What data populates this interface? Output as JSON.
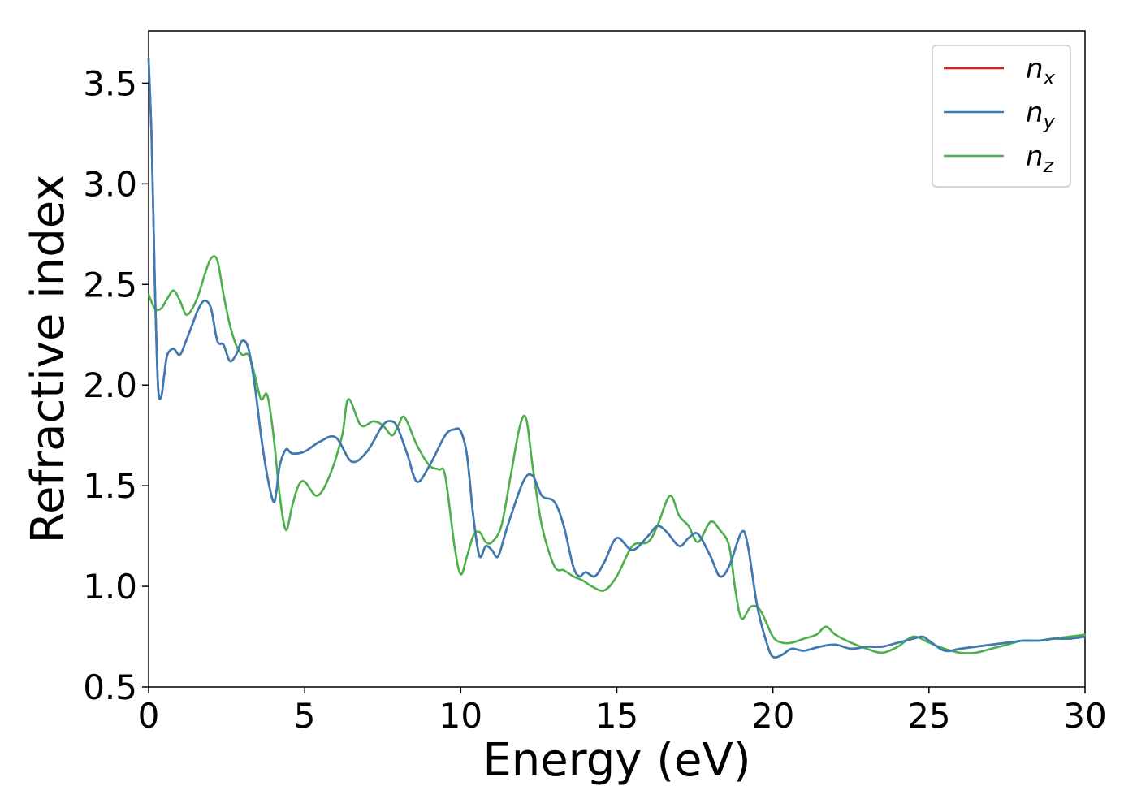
{
  "chart_data": {
    "type": "line",
    "xlabel": "Energy (eV)",
    "ylabel": "Refractive index",
    "xlim": [
      0,
      30
    ],
    "ylim": [
      0.5,
      3.76
    ],
    "xticks": [
      "0",
      "5",
      "10",
      "15",
      "20",
      "25",
      "30"
    ],
    "yticks": [
      "0.5",
      "1.0",
      "1.5",
      "2.0",
      "2.5",
      "3.0",
      "3.5"
    ],
    "grid": false,
    "legend_position": "top-right",
    "series": [
      {
        "name": "n",
        "subscript": "x",
        "color": "#e41a1c",
        "x": [
          0,
          0.1,
          0.2,
          0.3,
          0.4,
          0.5,
          0.6,
          0.8,
          1.0,
          1.2,
          1.4,
          1.6,
          1.8,
          2.0,
          2.2,
          2.4,
          2.6,
          2.8,
          3.0,
          3.2,
          3.4,
          3.6,
          3.8,
          4.0,
          4.1,
          4.2,
          4.4,
          4.6,
          5.0,
          5.5,
          6.0,
          6.5,
          7.0,
          7.5,
          7.8,
          8.0,
          8.3,
          8.6,
          9.0,
          9.5,
          9.8,
          10.0,
          10.2,
          10.4,
          10.6,
          10.8,
          11.0,
          11.2,
          11.5,
          12.0,
          12.3,
          12.6,
          13.0,
          13.3,
          13.6,
          13.8,
          14.0,
          14.3,
          14.6,
          15.0,
          15.5,
          16.0,
          16.3,
          16.6,
          17.0,
          17.3,
          17.6,
          18.0,
          18.3,
          18.6,
          19.0,
          19.2,
          19.5,
          19.8,
          20.0,
          20.3,
          20.6,
          21.0,
          21.5,
          22.0,
          22.5,
          23.0,
          23.5,
          24.0,
          24.5,
          24.8,
          25.0,
          25.5,
          26.0,
          26.5,
          27.0,
          27.5,
          28.0,
          28.5,
          29.0,
          29.5,
          30.0
        ],
        "values": [
          3.62,
          3.2,
          2.5,
          2.0,
          1.94,
          2.05,
          2.15,
          2.18,
          2.15,
          2.22,
          2.3,
          2.38,
          2.42,
          2.38,
          2.22,
          2.2,
          2.12,
          2.15,
          2.22,
          2.18,
          2.0,
          1.75,
          1.55,
          1.42,
          1.48,
          1.6,
          1.68,
          1.66,
          1.67,
          1.72,
          1.74,
          1.62,
          1.67,
          1.8,
          1.82,
          1.78,
          1.65,
          1.52,
          1.6,
          1.75,
          1.78,
          1.77,
          1.65,
          1.35,
          1.15,
          1.2,
          1.18,
          1.15,
          1.3,
          1.52,
          1.55,
          1.45,
          1.42,
          1.3,
          1.1,
          1.05,
          1.07,
          1.05,
          1.12,
          1.24,
          1.18,
          1.25,
          1.3,
          1.27,
          1.2,
          1.24,
          1.26,
          1.15,
          1.05,
          1.1,
          1.27,
          1.2,
          0.9,
          0.72,
          0.65,
          0.66,
          0.69,
          0.68,
          0.7,
          0.71,
          0.69,
          0.7,
          0.7,
          0.72,
          0.74,
          0.75,
          0.73,
          0.68,
          0.69,
          0.7,
          0.71,
          0.72,
          0.73,
          0.73,
          0.74,
          0.74,
          0.75
        ]
      },
      {
        "name": "n",
        "subscript": "y",
        "color": "#377eb8",
        "x": [
          0,
          0.1,
          0.2,
          0.3,
          0.4,
          0.5,
          0.6,
          0.8,
          1.0,
          1.2,
          1.4,
          1.6,
          1.8,
          2.0,
          2.2,
          2.4,
          2.6,
          2.8,
          3.0,
          3.2,
          3.4,
          3.6,
          3.8,
          4.0,
          4.1,
          4.2,
          4.4,
          4.6,
          5.0,
          5.5,
          6.0,
          6.5,
          7.0,
          7.5,
          7.8,
          8.0,
          8.3,
          8.6,
          9.0,
          9.5,
          9.8,
          10.0,
          10.2,
          10.4,
          10.6,
          10.8,
          11.0,
          11.2,
          11.5,
          12.0,
          12.3,
          12.6,
          13.0,
          13.3,
          13.6,
          13.8,
          14.0,
          14.3,
          14.6,
          15.0,
          15.5,
          16.0,
          16.3,
          16.6,
          17.0,
          17.3,
          17.6,
          18.0,
          18.3,
          18.6,
          19.0,
          19.2,
          19.5,
          19.8,
          20.0,
          20.3,
          20.6,
          21.0,
          21.5,
          22.0,
          22.5,
          23.0,
          23.5,
          24.0,
          24.5,
          24.8,
          25.0,
          25.5,
          26.0,
          26.5,
          27.0,
          27.5,
          28.0,
          28.5,
          29.0,
          29.5,
          30.0
        ],
        "values": [
          3.62,
          3.2,
          2.5,
          2.0,
          1.94,
          2.05,
          2.15,
          2.18,
          2.15,
          2.22,
          2.3,
          2.38,
          2.42,
          2.38,
          2.22,
          2.2,
          2.12,
          2.15,
          2.22,
          2.18,
          2.0,
          1.75,
          1.55,
          1.42,
          1.48,
          1.6,
          1.68,
          1.66,
          1.67,
          1.72,
          1.74,
          1.62,
          1.67,
          1.8,
          1.82,
          1.78,
          1.65,
          1.52,
          1.6,
          1.75,
          1.78,
          1.77,
          1.65,
          1.35,
          1.15,
          1.2,
          1.18,
          1.15,
          1.3,
          1.52,
          1.55,
          1.45,
          1.42,
          1.3,
          1.1,
          1.05,
          1.07,
          1.05,
          1.12,
          1.24,
          1.18,
          1.25,
          1.3,
          1.27,
          1.2,
          1.24,
          1.26,
          1.15,
          1.05,
          1.1,
          1.27,
          1.2,
          0.9,
          0.72,
          0.65,
          0.66,
          0.69,
          0.68,
          0.7,
          0.71,
          0.69,
          0.7,
          0.7,
          0.72,
          0.74,
          0.75,
          0.73,
          0.68,
          0.69,
          0.7,
          0.71,
          0.72,
          0.73,
          0.73,
          0.74,
          0.74,
          0.75
        ]
      },
      {
        "name": "n",
        "subscript": "z",
        "color": "#4daf4a",
        "x": [
          0,
          0.2,
          0.4,
          0.6,
          0.8,
          1.0,
          1.2,
          1.4,
          1.6,
          1.8,
          2.0,
          2.2,
          2.4,
          2.6,
          2.8,
          3.0,
          3.2,
          3.4,
          3.6,
          3.8,
          4.0,
          4.2,
          4.4,
          4.6,
          4.8,
          5.0,
          5.4,
          5.8,
          6.2,
          6.4,
          6.8,
          7.2,
          7.5,
          7.8,
          8.0,
          8.2,
          8.6,
          9.0,
          9.3,
          9.5,
          9.8,
          10.0,
          10.2,
          10.4,
          10.6,
          10.8,
          11.0,
          11.3,
          11.6,
          11.9,
          12.1,
          12.3,
          12.6,
          13.0,
          13.3,
          13.6,
          13.9,
          14.2,
          14.6,
          15.0,
          15.5,
          16.0,
          16.3,
          16.7,
          17.0,
          17.3,
          17.6,
          18.0,
          18.3,
          18.6,
          18.8,
          19.0,
          19.3,
          19.6,
          20.0,
          20.3,
          20.6,
          21.0,
          21.4,
          21.7,
          22.0,
          22.5,
          23.0,
          23.5,
          24.0,
          24.5,
          25.0,
          25.5,
          26.0,
          26.5,
          27.0,
          27.5,
          28.0,
          28.5,
          29.0,
          29.5,
          30.0
        ],
        "values": [
          2.45,
          2.38,
          2.38,
          2.43,
          2.47,
          2.42,
          2.35,
          2.38,
          2.45,
          2.55,
          2.63,
          2.62,
          2.45,
          2.3,
          2.2,
          2.15,
          2.15,
          2.05,
          1.93,
          1.95,
          1.75,
          1.45,
          1.28,
          1.4,
          1.5,
          1.52,
          1.45,
          1.55,
          1.75,
          1.93,
          1.8,
          1.82,
          1.8,
          1.75,
          1.8,
          1.84,
          1.7,
          1.6,
          1.58,
          1.55,
          1.2,
          1.06,
          1.15,
          1.25,
          1.27,
          1.22,
          1.22,
          1.3,
          1.55,
          1.8,
          1.83,
          1.6,
          1.3,
          1.1,
          1.08,
          1.05,
          1.03,
          1.0,
          0.98,
          1.05,
          1.2,
          1.22,
          1.3,
          1.45,
          1.35,
          1.3,
          1.22,
          1.32,
          1.28,
          1.2,
          0.98,
          0.84,
          0.9,
          0.88,
          0.75,
          0.72,
          0.72,
          0.74,
          0.76,
          0.8,
          0.76,
          0.72,
          0.69,
          0.67,
          0.7,
          0.75,
          0.72,
          0.69,
          0.67,
          0.67,
          0.69,
          0.71,
          0.73,
          0.73,
          0.74,
          0.75,
          0.76
        ]
      }
    ]
  }
}
